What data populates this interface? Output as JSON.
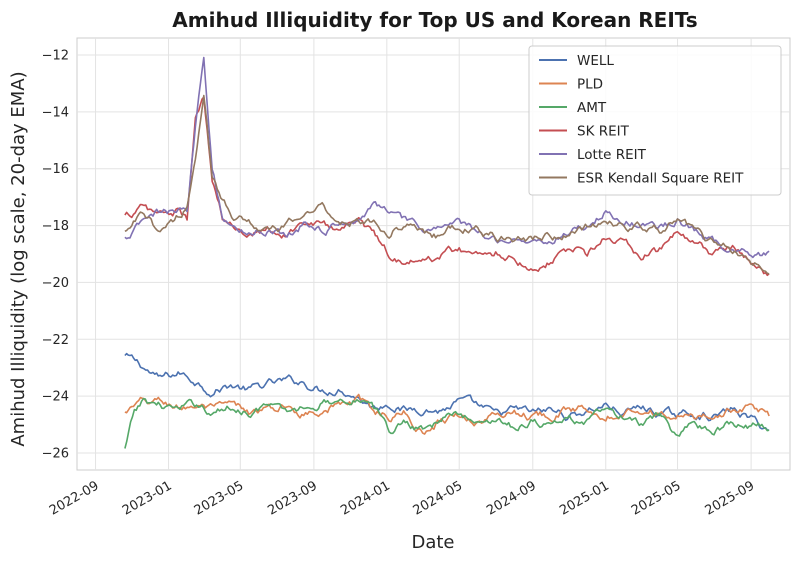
{
  "chart_data": {
    "type": "line",
    "title": "Amihud Illiquidity for Top US and Korean REITs",
    "xlabel": "Date",
    "ylabel": "Amihud Illiquidity (log scale, 20-day EMA)",
    "x_ticks": [
      "2022-09",
      "2023-01",
      "2023-05",
      "2023-09",
      "2024-01",
      "2024-05",
      "2024-09",
      "2025-01",
      "2025-05",
      "2025-09"
    ],
    "y_ticks": [
      -26,
      -24,
      -22,
      -20,
      -18,
      -16,
      -14,
      -12
    ],
    "xlim": [
      "2022-08-01",
      "2025-11-05"
    ],
    "ylim": [
      -26.6,
      -11.4
    ],
    "legend_position": "top-right",
    "series": [
      {
        "name": "WELL",
        "color": "#4c72b0",
        "points": [
          [
            "2022-10-20",
            -22.6
          ],
          [
            "2022-11-15",
            -22.9
          ],
          [
            "2022-12-15",
            -23.4
          ],
          [
            "2023-01-20",
            -23.2
          ],
          [
            "2023-02-20",
            -23.5
          ],
          [
            "2023-03-15",
            -23.8
          ],
          [
            "2023-04-15",
            -23.6
          ],
          [
            "2023-05-15",
            -23.8
          ],
          [
            "2023-06-15",
            -23.6
          ],
          [
            "2023-07-15",
            -23.5
          ],
          [
            "2023-08-15",
            -23.5
          ],
          [
            "2023-09-15",
            -23.8
          ],
          [
            "2023-10-15",
            -23.7
          ],
          [
            "2023-11-15",
            -24.0
          ],
          [
            "2023-12-10",
            -24.4
          ],
          [
            "2024-01-05",
            -24.2
          ],
          [
            "2024-02-01",
            -24.5
          ],
          [
            "2024-03-01",
            -24.4
          ],
          [
            "2024-04-01",
            -24.5
          ],
          [
            "2024-05-01",
            -24.2
          ],
          [
            "2024-06-01",
            -24.4
          ],
          [
            "2024-07-01",
            -24.7
          ],
          [
            "2024-08-01",
            -24.5
          ],
          [
            "2024-09-01",
            -24.6
          ],
          [
            "2024-10-01",
            -24.5
          ],
          [
            "2024-11-01",
            -24.7
          ],
          [
            "2024-12-01",
            -24.5
          ],
          [
            "2025-01-01",
            -24.3
          ],
          [
            "2025-02-01",
            -24.6
          ],
          [
            "2025-03-01",
            -24.4
          ],
          [
            "2025-04-01",
            -24.6
          ],
          [
            "2025-05-01",
            -24.7
          ],
          [
            "2025-06-01",
            -24.6
          ],
          [
            "2025-07-01",
            -24.7
          ],
          [
            "2025-08-01",
            -24.5
          ],
          [
            "2025-09-01",
            -24.8
          ],
          [
            "2025-10-01",
            -25.2
          ]
        ]
      },
      {
        "name": "PLD",
        "color": "#dd8452",
        "points": [
          [
            "2022-10-20",
            -24.6
          ],
          [
            "2022-11-15",
            -24.3
          ],
          [
            "2022-12-15",
            -24.2
          ],
          [
            "2023-01-20",
            -24.4
          ],
          [
            "2023-02-20",
            -24.3
          ],
          [
            "2023-03-15",
            -24.5
          ],
          [
            "2023-04-15",
            -24.4
          ],
          [
            "2023-05-15",
            -24.6
          ],
          [
            "2023-06-15",
            -24.5
          ],
          [
            "2023-07-15",
            -24.4
          ],
          [
            "2023-08-15",
            -24.6
          ],
          [
            "2023-09-15",
            -24.4
          ],
          [
            "2023-10-15",
            -24.3
          ],
          [
            "2023-11-15",
            -24.2
          ],
          [
            "2023-12-10",
            -24.5
          ],
          [
            "2024-01-05",
            -24.7
          ],
          [
            "2024-02-01",
            -24.6
          ],
          [
            "2024-03-01",
            -25.3
          ],
          [
            "2024-04-01",
            -24.8
          ],
          [
            "2024-05-01",
            -24.6
          ],
          [
            "2024-06-01",
            -24.9
          ],
          [
            "2024-07-01",
            -24.7
          ],
          [
            "2024-08-01",
            -24.5
          ],
          [
            "2024-09-01",
            -24.7
          ],
          [
            "2024-10-01",
            -24.6
          ],
          [
            "2024-11-01",
            -24.5
          ],
          [
            "2024-12-01",
            -24.4
          ],
          [
            "2025-01-01",
            -24.6
          ],
          [
            "2025-02-01",
            -24.5
          ],
          [
            "2025-03-01",
            -24.4
          ],
          [
            "2025-04-01",
            -24.6
          ],
          [
            "2025-05-01",
            -24.7
          ],
          [
            "2025-06-01",
            -24.8
          ],
          [
            "2025-07-01",
            -24.6
          ],
          [
            "2025-08-01",
            -24.5
          ],
          [
            "2025-09-01",
            -24.3
          ],
          [
            "2025-10-01",
            -24.7
          ]
        ]
      },
      {
        "name": "AMT",
        "color": "#55a868",
        "points": [
          [
            "2022-10-20",
            -25.9
          ],
          [
            "2022-11-05",
            -24.6
          ],
          [
            "2022-11-20",
            -24.2
          ],
          [
            "2022-12-15",
            -24.3
          ],
          [
            "2023-01-20",
            -24.5
          ],
          [
            "2023-02-20",
            -24.3
          ],
          [
            "2023-03-15",
            -24.6
          ],
          [
            "2023-04-15",
            -24.4
          ],
          [
            "2023-05-15",
            -24.5
          ],
          [
            "2023-06-15",
            -24.3
          ],
          [
            "2023-07-15",
            -24.6
          ],
          [
            "2023-08-15",
            -24.4
          ],
          [
            "2023-09-15",
            -24.2
          ],
          [
            "2023-10-15",
            -24.1
          ],
          [
            "2023-11-15",
            -24.0
          ],
          [
            "2023-12-10",
            -24.5
          ],
          [
            "2024-01-05",
            -25.2
          ],
          [
            "2024-02-01",
            -24.9
          ],
          [
            "2024-03-01",
            -25.1
          ],
          [
            "2024-04-01",
            -24.8
          ],
          [
            "2024-05-01",
            -24.6
          ],
          [
            "2024-06-01",
            -25.0
          ],
          [
            "2024-07-01",
            -24.7
          ],
          [
            "2024-08-01",
            -25.1
          ],
          [
            "2024-09-01",
            -24.8
          ],
          [
            "2024-10-01",
            -25.0
          ],
          [
            "2024-11-01",
            -24.8
          ],
          [
            "2024-12-01",
            -24.9
          ],
          [
            "2025-01-01",
            -24.5
          ],
          [
            "2025-02-01",
            -24.8
          ],
          [
            "2025-03-01",
            -25.0
          ],
          [
            "2025-04-01",
            -24.8
          ],
          [
            "2025-05-01",
            -25.4
          ],
          [
            "2025-06-01",
            -25.0
          ],
          [
            "2025-07-01",
            -25.2
          ],
          [
            "2025-08-01",
            -24.9
          ],
          [
            "2025-09-01",
            -25.0
          ],
          [
            "2025-10-01",
            -25.2
          ]
        ]
      },
      {
        "name": "SK REIT",
        "color": "#c44e52",
        "points": [
          [
            "2022-10-20",
            -17.7
          ],
          [
            "2022-11-15",
            -17.4
          ],
          [
            "2022-12-15",
            -17.6
          ],
          [
            "2023-01-20",
            -17.5
          ],
          [
            "2023-02-01",
            -17.8
          ],
          [
            "2023-02-15",
            -14.4
          ],
          [
            "2023-03-01",
            -13.5
          ],
          [
            "2023-03-15",
            -16.5
          ],
          [
            "2023-04-01",
            -17.8
          ],
          [
            "2023-04-20",
            -18.1
          ],
          [
            "2023-05-15",
            -18.2
          ],
          [
            "2023-06-15",
            -18.0
          ],
          [
            "2023-07-15",
            -18.3
          ],
          [
            "2023-08-15",
            -17.9
          ],
          [
            "2023-09-15",
            -18.0
          ],
          [
            "2023-10-15",
            -18.1
          ],
          [
            "2023-11-15",
            -17.8
          ],
          [
            "2023-12-10",
            -18.3
          ],
          [
            "2024-01-05",
            -19.0
          ],
          [
            "2024-02-01",
            -19.2
          ],
          [
            "2024-03-01",
            -19.3
          ],
          [
            "2024-04-01",
            -19.0
          ],
          [
            "2024-05-01",
            -18.8
          ],
          [
            "2024-06-01",
            -19.1
          ],
          [
            "2024-07-01",
            -18.9
          ],
          [
            "2024-08-01",
            -19.1
          ],
          [
            "2024-09-01",
            -19.5
          ],
          [
            "2024-10-01",
            -19.2
          ],
          [
            "2024-11-01",
            -18.8
          ],
          [
            "2024-12-01",
            -19.0
          ],
          [
            "2025-01-01",
            -18.4
          ],
          [
            "2025-02-01",
            -18.6
          ],
          [
            "2025-03-01",
            -19.1
          ],
          [
            "2025-04-01",
            -18.9
          ],
          [
            "2025-05-01",
            -18.3
          ],
          [
            "2025-06-01",
            -18.8
          ],
          [
            "2025-07-01",
            -19.0
          ],
          [
            "2025-08-01",
            -18.8
          ],
          [
            "2025-09-01",
            -19.4
          ],
          [
            "2025-10-01",
            -19.7
          ]
        ]
      },
      {
        "name": "Lotte REIT",
        "color": "#8172b3",
        "points": [
          [
            "2022-10-20",
            -18.5
          ],
          [
            "2022-11-15",
            -18.0
          ],
          [
            "2022-12-15",
            -17.6
          ],
          [
            "2023-01-20",
            -17.5
          ],
          [
            "2023-02-01",
            -17.6
          ],
          [
            "2023-02-15",
            -14.5
          ],
          [
            "2023-03-01",
            -11.9
          ],
          [
            "2023-03-15",
            -15.9
          ],
          [
            "2023-04-01",
            -17.6
          ],
          [
            "2023-04-20",
            -18.1
          ],
          [
            "2023-05-15",
            -18.2
          ],
          [
            "2023-06-15",
            -18.1
          ],
          [
            "2023-07-15",
            -18.3
          ],
          [
            "2023-08-15",
            -17.9
          ],
          [
            "2023-09-15",
            -18.1
          ],
          [
            "2023-10-15",
            -18.0
          ],
          [
            "2023-11-15",
            -17.7
          ],
          [
            "2023-12-10",
            -17.3
          ],
          [
            "2024-01-05",
            -17.4
          ],
          [
            "2024-02-01",
            -17.9
          ],
          [
            "2024-03-01",
            -18.2
          ],
          [
            "2024-04-01",
            -18.0
          ],
          [
            "2024-05-01",
            -17.9
          ],
          [
            "2024-06-01",
            -18.3
          ],
          [
            "2024-07-01",
            -18.5
          ],
          [
            "2024-08-01",
            -18.4
          ],
          [
            "2024-09-01",
            -18.6
          ],
          [
            "2024-10-01",
            -18.5
          ],
          [
            "2024-11-01",
            -18.2
          ],
          [
            "2024-12-01",
            -18.0
          ],
          [
            "2025-01-01",
            -17.5
          ],
          [
            "2025-02-01",
            -17.9
          ],
          [
            "2025-03-01",
            -17.9
          ],
          [
            "2025-04-01",
            -18.1
          ],
          [
            "2025-05-01",
            -17.8
          ],
          [
            "2025-06-01",
            -18.2
          ],
          [
            "2025-07-01",
            -18.6
          ],
          [
            "2025-08-01",
            -18.8
          ],
          [
            "2025-09-01",
            -18.9
          ],
          [
            "2025-10-01",
            -18.9
          ]
        ]
      },
      {
        "name": "ESR Kendall Square REIT",
        "color": "#937860",
        "points": [
          [
            "2022-10-20",
            -18.3
          ],
          [
            "2022-11-15",
            -17.7
          ],
          [
            "2022-12-15",
            -18.2
          ],
          [
            "2023-01-20",
            -17.6
          ],
          [
            "2023-02-01",
            -17.3
          ],
          [
            "2023-02-15",
            -15.5
          ],
          [
            "2023-03-01",
            -13.6
          ],
          [
            "2023-03-15",
            -16.4
          ],
          [
            "2023-04-01",
            -17.0
          ],
          [
            "2023-04-20",
            -17.6
          ],
          [
            "2023-05-15",
            -17.8
          ],
          [
            "2023-06-15",
            -18.2
          ],
          [
            "2023-07-15",
            -18.1
          ],
          [
            "2023-08-15",
            -17.6
          ],
          [
            "2023-09-15",
            -17.3
          ],
          [
            "2023-10-15",
            -17.8
          ],
          [
            "2023-11-15",
            -17.9
          ],
          [
            "2023-12-10",
            -17.8
          ],
          [
            "2024-01-05",
            -18.2
          ],
          [
            "2024-02-01",
            -17.9
          ],
          [
            "2024-03-01",
            -18.2
          ],
          [
            "2024-04-01",
            -18.4
          ],
          [
            "2024-05-01",
            -18.0
          ],
          [
            "2024-06-01",
            -18.2
          ],
          [
            "2024-07-01",
            -18.4
          ],
          [
            "2024-08-01",
            -18.5
          ],
          [
            "2024-09-01",
            -18.5
          ],
          [
            "2024-10-01",
            -18.3
          ],
          [
            "2024-11-01",
            -18.4
          ],
          [
            "2024-12-01",
            -18.1
          ],
          [
            "2025-01-01",
            -17.8
          ],
          [
            "2025-02-01",
            -18.0
          ],
          [
            "2025-03-01",
            -18.1
          ],
          [
            "2025-04-01",
            -18.2
          ],
          [
            "2025-05-01",
            -17.6
          ],
          [
            "2025-06-01",
            -18.3
          ],
          [
            "2025-07-01",
            -18.6
          ],
          [
            "2025-08-01",
            -18.9
          ],
          [
            "2025-09-01",
            -19.3
          ],
          [
            "2025-10-01",
            -19.7
          ]
        ]
      }
    ]
  }
}
